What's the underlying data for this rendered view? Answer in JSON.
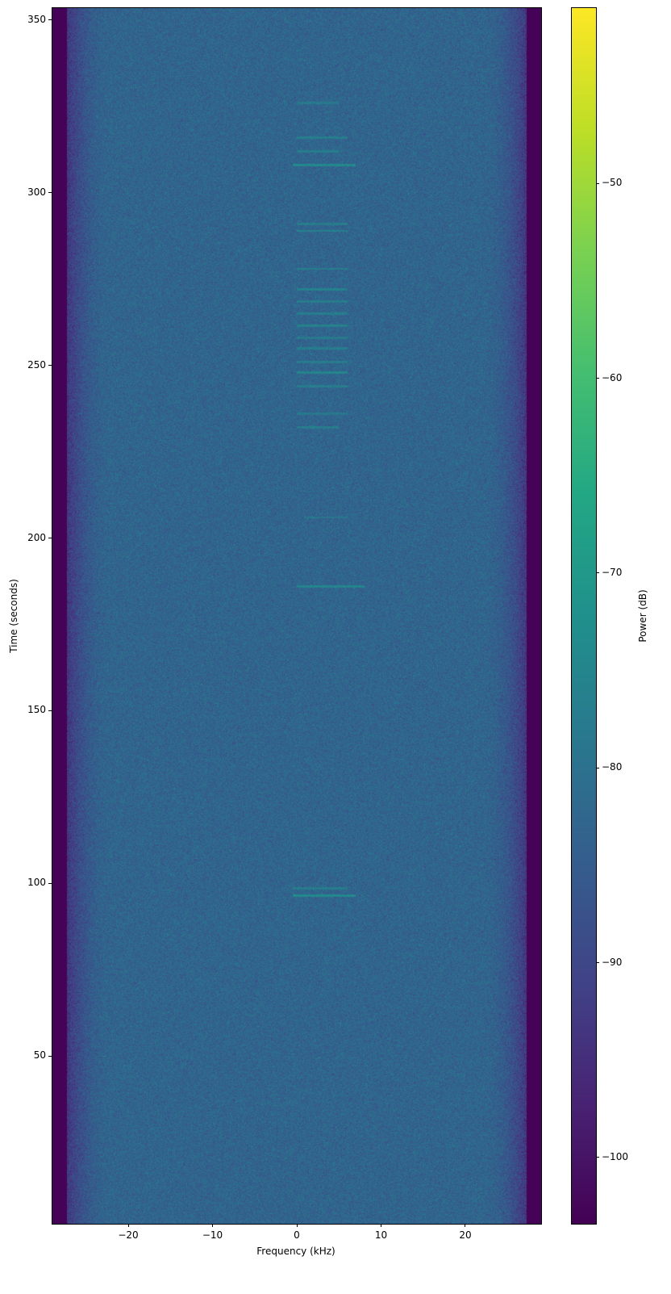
{
  "chart_data": {
    "type": "heatmap",
    "subtype": "spectrogram",
    "title": "",
    "xlabel": "Frequency (kHz)",
    "ylabel": "Time (seconds)",
    "xlim": [
      -29,
      29
    ],
    "ylim": [
      1.4,
      353.5
    ],
    "xticks": [
      -20,
      -10,
      0,
      10,
      20
    ],
    "xtick_labels": [
      "−20",
      "−10",
      "0",
      "10",
      "20"
    ],
    "yticks": [
      50,
      100,
      150,
      200,
      250,
      300,
      350
    ],
    "ytick_labels": [
      "50",
      "100",
      "150",
      "200",
      "250",
      "300",
      "350"
    ],
    "colormap": "viridis",
    "colorbar": {
      "label": "Power (dB)",
      "clim": [
        -103.4,
        -41
      ],
      "ticks": [
        -50,
        -60,
        -70,
        -80,
        -90,
        -100
      ],
      "tick_labels": [
        "−50",
        "−60",
        "−70",
        "−80",
        "−90",
        "−100"
      ]
    },
    "noise_floor_db": -83,
    "passband_edges_khz": [
      -26,
      26
    ],
    "out_of_band_db": -103,
    "bursts": [
      {
        "time": 96.5,
        "f_range": [
          -0.5,
          7
        ],
        "power_db": -74
      },
      {
        "time": 98.5,
        "f_range": [
          -0.5,
          6
        ],
        "power_db": -77
      },
      {
        "time": 186,
        "f_range": [
          0,
          8
        ],
        "power_db": -75
      },
      {
        "time": 206,
        "f_range": [
          1,
          6
        ],
        "power_db": -78
      },
      {
        "time": 232,
        "f_range": [
          0,
          5
        ],
        "power_db": -77
      },
      {
        "time": 236,
        "f_range": [
          0,
          6
        ],
        "power_db": -78
      },
      {
        "time": 244,
        "f_range": [
          0,
          6
        ],
        "power_db": -77
      },
      {
        "time": 248,
        "f_range": [
          0,
          6
        ],
        "power_db": -75
      },
      {
        "time": 251,
        "f_range": [
          0,
          6
        ],
        "power_db": -77
      },
      {
        "time": 255,
        "f_range": [
          0,
          6
        ],
        "power_db": -77
      },
      {
        "time": 258,
        "f_range": [
          0,
          6
        ],
        "power_db": -78
      },
      {
        "time": 261.5,
        "f_range": [
          0,
          6
        ],
        "power_db": -76
      },
      {
        "time": 265,
        "f_range": [
          0,
          6
        ],
        "power_db": -77
      },
      {
        "time": 268.5,
        "f_range": [
          0,
          6
        ],
        "power_db": -77
      },
      {
        "time": 272,
        "f_range": [
          0,
          6
        ],
        "power_db": -76
      },
      {
        "time": 278,
        "f_range": [
          0,
          6
        ],
        "power_db": -77
      },
      {
        "time": 289,
        "f_range": [
          0,
          6
        ],
        "power_db": -76
      },
      {
        "time": 291,
        "f_range": [
          0,
          6
        ],
        "power_db": -77
      },
      {
        "time": 308,
        "f_range": [
          -0.5,
          7
        ],
        "power_db": -74
      },
      {
        "time": 312,
        "f_range": [
          0,
          5
        ],
        "power_db": -77
      },
      {
        "time": 316,
        "f_range": [
          0,
          6
        ],
        "power_db": -77
      },
      {
        "time": 326,
        "f_range": [
          0,
          5
        ],
        "power_db": -78
      }
    ]
  }
}
